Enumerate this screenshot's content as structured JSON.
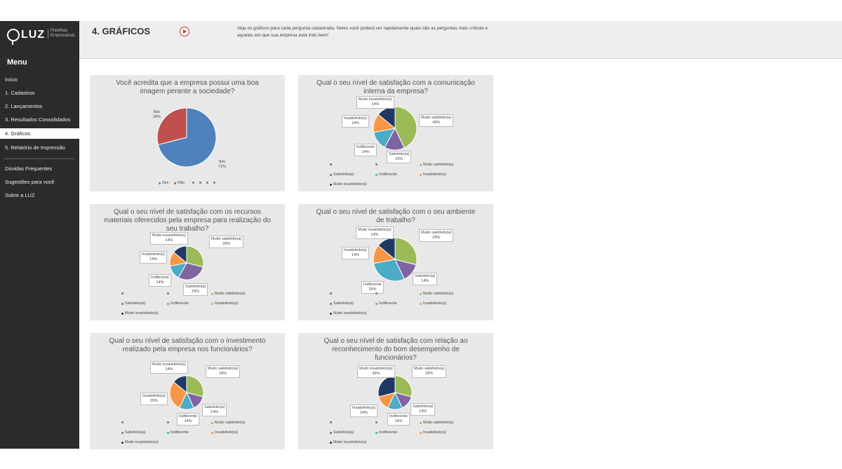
{
  "sidebar": {
    "logo_text": "LUZ",
    "logo_sub": "Planilhas Empresariais",
    "menu_title": "Menu",
    "items": [
      {
        "label": "Início"
      },
      {
        "label": "1. Cadastros"
      },
      {
        "label": "2. Lançamentos"
      },
      {
        "label": "3. Resultados Consolidados"
      },
      {
        "label": "4. Gráficos",
        "active": true
      },
      {
        "label": "5. Relatório de Impressão"
      },
      {
        "label": "Dúvidas Frequentes"
      },
      {
        "label": "Sugestões para você"
      },
      {
        "label": "Sobre a LUZ"
      }
    ]
  },
  "header": {
    "title": "4. GRÁFICOS",
    "video_icon": "play-circle-icon",
    "description": "Veja os gráficos para cada pergunta cadastrada. Neles você poderá ver rapidamente quais são as perguntas mais críticas e aquelas em que sua empresa está indo bem!"
  },
  "colors": {
    "sidebar_bg": "#2b2b2b",
    "header_bg": "#eeeeee",
    "card_bg": "#e8e8e8",
    "sim": "#4f81bd",
    "nao": "#c0504d",
    "muito_satisfeito": "#9bbb59",
    "satisfeito": "#8064a2",
    "indiferente": "#4bacc6",
    "insatisfeito": "#f79646",
    "muito_insatisfeito": "#1f3864"
  },
  "chart_data": [
    {
      "type": "pie",
      "title": "Você acredita que a empresa possui uma boa imagem perante a sociedade?",
      "slices": [
        {
          "label": "Sim",
          "value": 71,
          "display": "71%",
          "color": "#4f81bd"
        },
        {
          "label": "Não",
          "value": 29,
          "display": "29%",
          "color": "#c0504d"
        }
      ],
      "legend": [
        "Sim",
        "Não"
      ]
    },
    {
      "type": "pie",
      "title": "Qual o seu nível de satisfação com a comunicação interna da empresa?",
      "slices": [
        {
          "label": "Muito satisfeito(a)",
          "value": 43,
          "display": "43%",
          "color": "#9bbb59"
        },
        {
          "label": "Satisfeito(a)",
          "value": 15,
          "display": "15%",
          "color": "#8064a2"
        },
        {
          "label": "Indiferente",
          "value": 14,
          "display": "14%",
          "color": "#4bacc6"
        },
        {
          "label": "Insatisfeito(a)",
          "value": 14,
          "display": "14%",
          "color": "#f79646"
        },
        {
          "label": "Muito insatisfeito(a)",
          "value": 14,
          "display": "14%",
          "color": "#1f3864"
        }
      ],
      "legend": [
        "Muito satisfeito(a)",
        "Satisfeito(a)",
        "Indiferente",
        "Insatisfeito(a)",
        "Muito insatisfeito(a)"
      ]
    },
    {
      "type": "pie",
      "title": "Qual o seu nível de satisfação com os recursos materiais oferecidos pela empresa para realização do seu trabalho?",
      "slices": [
        {
          "label": "Muito satisfeito(a)",
          "value": 29,
          "display": "29%",
          "color": "#9bbb59"
        },
        {
          "label": "Satisfeito(a)",
          "value": 29,
          "display": "29%",
          "color": "#8064a2"
        },
        {
          "label": "Indiferente",
          "value": 14,
          "display": "14%",
          "color": "#4bacc6"
        },
        {
          "label": "Insatisfeito(a)",
          "value": 14,
          "display": "14%",
          "color": "#f79646"
        },
        {
          "label": "Muito insatisfeito(a)",
          "value": 14,
          "display": "14%",
          "color": "#1f3864"
        }
      ],
      "legend": [
        "Muito satisfeito(a)",
        "Satisfeito(a)",
        "Indiferente",
        "Insatisfeito(a)",
        "Muito insatisfeito(a)"
      ]
    },
    {
      "type": "pie",
      "title": "Qual o seu nível de satisfação com o seu ambiente de trabalho?",
      "slices": [
        {
          "label": "Muito satisfeito(a)",
          "value": 29,
          "display": "29%",
          "color": "#9bbb59"
        },
        {
          "label": "Satisfeito(a)",
          "value": 14,
          "display": "14%",
          "color": "#8064a2"
        },
        {
          "label": "Indiferente",
          "value": 29,
          "display": "29%",
          "color": "#4bacc6"
        },
        {
          "label": "Insatisfeito(a)",
          "value": 14,
          "display": "14%",
          "color": "#f79646"
        },
        {
          "label": "Muito insatisfeito(a)",
          "value": 14,
          "display": "14%",
          "color": "#1f3864"
        }
      ],
      "legend": [
        "Muito satisfeito(a)",
        "Satisfeito(a)",
        "Indiferente",
        "Insatisfeito(a)",
        "Muito insatisfeito(a)"
      ]
    },
    {
      "type": "pie",
      "title": "Qual o seu nível de satisfação com o investimento realizado pela empresa nos funcionários?",
      "slices": [
        {
          "label": "Muito satisfeito(a)",
          "value": 29,
          "display": "29%",
          "color": "#9bbb59"
        },
        {
          "label": "Satisfeito(a)",
          "value": 14,
          "display": "14%",
          "color": "#8064a2"
        },
        {
          "label": "Indiferente",
          "value": 14,
          "display": "14%",
          "color": "#4bacc6"
        },
        {
          "label": "Insatisfeito(a)",
          "value": 29,
          "display": "29%",
          "color": "#f79646"
        },
        {
          "label": "Muito insatisfeito(a)",
          "value": 14,
          "display": "14%",
          "color": "#1f3864"
        }
      ],
      "legend": [
        "Muito satisfeito(a)",
        "Satisfeito(a)",
        "Indiferente",
        "Insatisfeito(a)",
        "Muito insatisfeito(a)"
      ]
    },
    {
      "type": "pie",
      "title": "Qual o seu nível de satisfação com relação ao reconhecimento do bom desempenho de funcionários?",
      "slices": [
        {
          "label": "Muito satisfeito(a)",
          "value": 29,
          "display": "29%",
          "color": "#9bbb59"
        },
        {
          "label": "Satisfeito(a)",
          "value": 14,
          "display": "14%",
          "color": "#8064a2"
        },
        {
          "label": "Indiferente",
          "value": 14,
          "display": "14%",
          "color": "#4bacc6"
        },
        {
          "label": "Insatisfeito(a)",
          "value": 14,
          "display": "14%",
          "color": "#f79646"
        },
        {
          "label": "Muito insatisfeito(a)",
          "value": 29,
          "display": "29%",
          "color": "#1f3864"
        }
      ],
      "legend": [
        "Muito satisfeito(a)",
        "Satisfeito(a)",
        "Indiferente",
        "Insatisfeito(a)",
        "Muito insatisfeito(a)"
      ]
    }
  ]
}
